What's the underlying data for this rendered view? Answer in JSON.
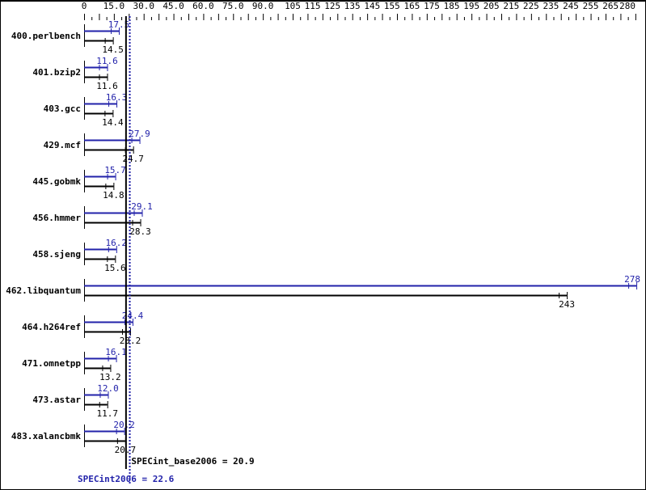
{
  "chart_data": {
    "type": "bar",
    "orientation": "horizontal",
    "categories": [
      "400.perlbench",
      "401.bzip2",
      "403.gcc",
      "429.mcf",
      "445.gobmk",
      "456.hmmer",
      "458.sjeng",
      "462.libquantum",
      "464.h264ref",
      "471.omnetpp",
      "473.astar",
      "483.xalancbmk"
    ],
    "series": [
      {
        "name": "SPECint2006",
        "color": "#2222aa",
        "values": [
          17.5,
          11.6,
          16.3,
          27.9,
          15.7,
          29.1,
          16.2,
          278,
          24.4,
          16.1,
          12.0,
          20.2
        ],
        "labels": [
          "17.5",
          "11.6",
          "16.3",
          "27.9",
          "15.7",
          "29.1",
          "16.2",
          "278",
          "24.4",
          "16.1",
          "12.0",
          "20.2"
        ]
      },
      {
        "name": "SPECint_base2006",
        "color": "#000000",
        "values": [
          14.5,
          11.6,
          14.4,
          24.7,
          14.8,
          28.3,
          15.6,
          243,
          23.2,
          13.2,
          11.7,
          20.7
        ],
        "labels": [
          "14.5",
          "11.6",
          "14.4",
          "24.7",
          "14.8",
          "28.3",
          "15.6",
          "243",
          "23.2",
          "13.2",
          "11.7",
          "20.7"
        ]
      }
    ],
    "xlim": [
      0,
      280
    ],
    "x_tick_labels": [
      "0",
      "15.0",
      "30.0",
      "45.0",
      "60.0",
      "75.0",
      "90.0",
      "105",
      "115",
      "125",
      "135",
      "145",
      "155",
      "165",
      "175",
      "185",
      "195",
      "205",
      "215",
      "225",
      "235",
      "245",
      "255",
      "265",
      "280"
    ],
    "x_tick_values": [
      0,
      15,
      30,
      45,
      60,
      75,
      90,
      105,
      115,
      125,
      135,
      145,
      155,
      165,
      175,
      185,
      195,
      205,
      215,
      225,
      235,
      245,
      255,
      265,
      280
    ],
    "axis_position": "top",
    "grid": false,
    "reference_lines": [
      {
        "label": "SPECint_base2006 = 20.9",
        "value": 20.9,
        "color": "#000000",
        "style": "solid"
      },
      {
        "label": "SPECint2006 = 22.6",
        "value": 22.6,
        "color": "#2222aa",
        "style": "dotted"
      }
    ]
  }
}
